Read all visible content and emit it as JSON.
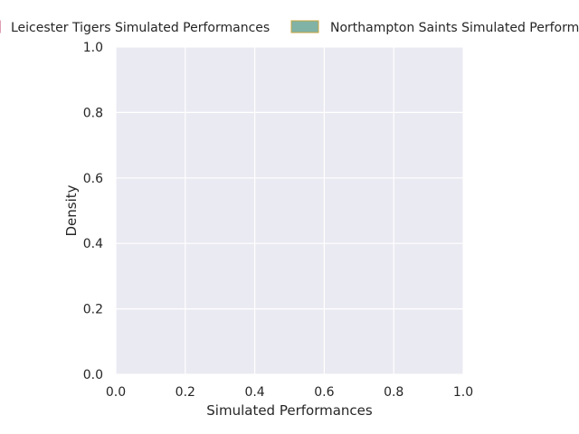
{
  "chart_data": {
    "type": "area",
    "title": "",
    "xlabel": "Simulated Performances",
    "ylabel": "Density",
    "xlim": [
      0.0,
      1.0
    ],
    "ylim": [
      0.0,
      1.0
    ],
    "x_ticks": [
      "0.0",
      "0.2",
      "0.4",
      "0.6",
      "0.8",
      "1.0"
    ],
    "y_ticks": [
      "0.0",
      "0.2",
      "0.4",
      "0.6",
      "0.8",
      "1.0"
    ],
    "grid": true,
    "legend_position": "top",
    "series": [
      {
        "name": "Leicester Tigers Simulated Performances",
        "values": [],
        "fill": "#e8e8f0",
        "edge": "#c03e6b"
      },
      {
        "name": "Northampton Saints Simulated Performances",
        "values": [],
        "fill": "#80b3a6",
        "edge": "#c9a43c"
      }
    ]
  }
}
